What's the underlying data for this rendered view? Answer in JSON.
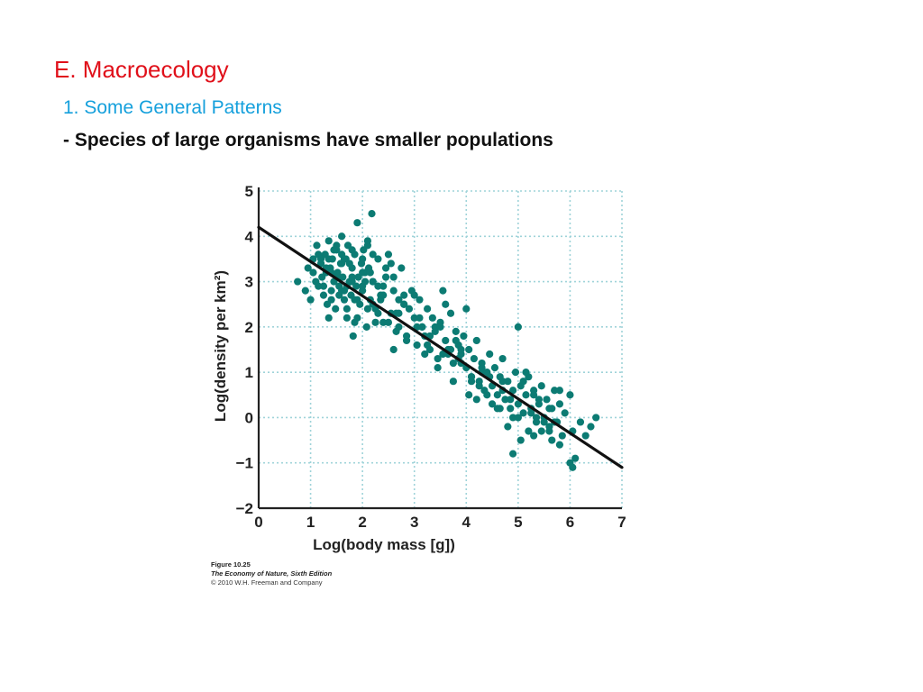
{
  "slide": {
    "title": "E. Macroecology",
    "subtitle": "1. Some General Patterns",
    "bullet": "- Species of large organisms have smaller populations"
  },
  "colors": {
    "title": "#e0101a",
    "subtitle": "#15a0dc",
    "points": "#0c7b73",
    "regression_line": "#111111",
    "grid": "#9fd3d9"
  },
  "caption": {
    "figure": "Figure 10.25",
    "book": "The Economy of Nature, Sixth Edition",
    "copyright": "© 2010 W.H. Freeman and Company"
  },
  "chart_data": {
    "type": "scatter",
    "title": "",
    "xlabel": "Log(body mass [g])",
    "ylabel": "Log(density per km²)",
    "xlim": [
      0,
      7
    ],
    "ylim": [
      -2,
      5
    ],
    "xticks": [
      "0",
      "1",
      "2",
      "3",
      "4",
      "5",
      "6",
      "7"
    ],
    "yticks": [
      "−2",
      "−1",
      "0",
      "1",
      "2",
      "3",
      "4",
      "5"
    ],
    "grid": true,
    "grid_style": "dotted",
    "regression_line": {
      "x": [
        0,
        7
      ],
      "y": [
        4.2,
        -1.1
      ]
    },
    "points": {
      "x": [
        0.75,
        0.9,
        0.95,
        1.0,
        1.05,
        1.1,
        1.12,
        1.15,
        1.2,
        1.22,
        1.25,
        1.28,
        1.3,
        1.32,
        1.35,
        1.38,
        1.4,
        1.42,
        1.45,
        1.48,
        1.5,
        1.52,
        1.55,
        1.58,
        1.6,
        1.62,
        1.65,
        1.68,
        1.7,
        1.72,
        1.75,
        1.78,
        1.8,
        1.82,
        1.85,
        1.88,
        1.9,
        1.92,
        1.95,
        1.98,
        2.0,
        2.02,
        2.05,
        2.08,
        2.1,
        2.12,
        2.15,
        2.18,
        2.2,
        2.25,
        2.3,
        2.35,
        2.4,
        2.45,
        2.5,
        2.55,
        2.6,
        2.65,
        2.7,
        2.75,
        2.8,
        2.85,
        2.9,
        2.95,
        3.0,
        3.05,
        3.1,
        3.15,
        3.2,
        3.25,
        3.3,
        3.35,
        3.4,
        3.45,
        3.5,
        3.55,
        3.6,
        3.65,
        3.7,
        3.75,
        3.8,
        3.85,
        3.9,
        3.95,
        4.0,
        4.05,
        4.1,
        4.15,
        4.2,
        4.25,
        4.3,
        4.35,
        4.4,
        4.45,
        4.5,
        4.55,
        4.6,
        4.65,
        4.7,
        4.75,
        4.8,
        4.85,
        4.9,
        4.95,
        5.0,
        5.05,
        5.1,
        5.15,
        5.2,
        5.25,
        5.3,
        5.35,
        5.4,
        5.45,
        5.5,
        5.55,
        5.6,
        5.65,
        5.7,
        5.75,
        5.8,
        5.85,
        5.9,
        6.0,
        6.05,
        6.1,
        6.2,
        6.3,
        6.4,
        6.5,
        1.3,
        1.35,
        1.45,
        1.55,
        1.6,
        1.7,
        1.8,
        1.9,
        2.0,
        2.1,
        2.2,
        2.3,
        2.4,
        2.5,
        2.6,
        2.7,
        2.8,
        3.0,
        3.2,
        3.4,
        3.6,
        3.8,
        3.9,
        4.0,
        4.1,
        4.3,
        4.5,
        4.7,
        4.9,
        5.0,
        5.2,
        5.4,
        5.6,
        5.8,
        6.0,
        1.5,
        1.65,
        1.75,
        1.85,
        2.05,
        2.25,
        2.45,
        2.65,
        2.85,
        3.05,
        3.25,
        3.45,
        3.65,
        3.85,
        4.05,
        4.25,
        4.45,
        4.65,
        4.85,
        5.05,
        5.25,
        5.45,
        5.65,
        1.05,
        1.15,
        1.25,
        1.35,
        1.4,
        1.5,
        1.6,
        1.7,
        1.8,
        1.9,
        2.0,
        2.1,
        2.2,
        2.3,
        2.6,
        2.8,
        3.3,
        3.7,
        4.1,
        4.4,
        4.8,
        5.1,
        5.3,
        5.5,
        5.7,
        1.65,
        1.85,
        2.15,
        2.35,
        2.55,
        3.15,
        3.55,
        3.75,
        4.2,
        4.6,
        4.9,
        5.15,
        5.35,
        5.6,
        6.05,
        1.2,
        1.4,
        1.6,
        1.8,
        2.0,
        2.2,
        2.4,
        2.7,
        3.1,
        3.5,
        3.9,
        4.3,
        4.7,
        5.0,
        5.3,
        5.8
      ],
      "y": [
        3.0,
        2.8,
        3.3,
        2.6,
        3.5,
        3.0,
        3.8,
        2.9,
        3.4,
        3.1,
        2.7,
        3.6,
        3.2,
        2.5,
        3.9,
        3.3,
        2.8,
        3.5,
        3.0,
        2.4,
        3.7,
        3.2,
        2.9,
        3.4,
        4.0,
        3.1,
        2.6,
        3.5,
        2.2,
        3.8,
        3.0,
        2.7,
        3.3,
        1.8,
        3.6,
        2.9,
        4.3,
        3.1,
        2.5,
        3.4,
        2.8,
        3.7,
        3.2,
        2.0,
        3.9,
        3.3,
        2.6,
        4.5,
        3.0,
        2.4,
        3.5,
        2.7,
        2.1,
        3.1,
        3.6,
        2.3,
        2.8,
        1.9,
        2.6,
        3.3,
        2.5,
        1.7,
        2.4,
        2.8,
        2.2,
        1.6,
        2.6,
        2.0,
        1.8,
        2.4,
        1.5,
        2.2,
        1.9,
        1.3,
        2.1,
        2.8,
        1.7,
        1.4,
        2.3,
        1.2,
        1.9,
        1.6,
        1.4,
        1.8,
        1.1,
        1.5,
        0.9,
        1.3,
        1.7,
        0.8,
        1.2,
        0.6,
        1.0,
        1.4,
        0.7,
        1.1,
        0.5,
        0.9,
        1.3,
        0.4,
        0.8,
        0.2,
        0.6,
        1.0,
        0.3,
        0.7,
        0.1,
        0.5,
        0.9,
        0.2,
        0.6,
        -0.1,
        0.3,
        0.7,
        0.0,
        0.4,
        -0.2,
        0.2,
        0.6,
        -0.1,
        0.3,
        -0.4,
        0.1,
        0.5,
        -0.3,
        -0.9,
        -0.1,
        -0.4,
        -0.2,
        0.0,
        3.3,
        2.2,
        3.7,
        2.7,
        3.6,
        2.4,
        3.0,
        2.2,
        3.5,
        2.4,
        3.6,
        2.3,
        2.9,
        2.1,
        3.1,
        2.0,
        2.5,
        2.7,
        1.4,
        2.0,
        2.5,
        1.7,
        1.2,
        2.4,
        0.8,
        1.1,
        0.3,
        0.8,
        0.0,
        2.0,
        -0.3,
        0.4,
        0.2,
        -0.6,
        -1.0,
        3.8,
        2.8,
        3.4,
        2.6,
        3.0,
        2.1,
        3.3,
        2.3,
        1.8,
        2.0,
        1.6,
        1.1,
        1.5,
        1.3,
        0.5,
        0.7,
        0.9,
        0.2,
        0.4,
        -0.5,
        0.1,
        -0.3,
        -0.5,
        3.2,
        3.6,
        2.9,
        3.5,
        2.6,
        3.1,
        3.4,
        2.9,
        3.7,
        2.6,
        3.2,
        3.8,
        2.5,
        2.9,
        1.5,
        2.7,
        1.8,
        1.5,
        0.9,
        0.5,
        -0.2,
        0.8,
        -0.4,
        -0.1,
        -0.1,
        3.5,
        2.1,
        3.2,
        2.6,
        3.4,
        2.0,
        1.4,
        0.8,
        0.4,
        0.2,
        -0.8,
        1.0,
        0.0,
        -0.3,
        -1.1,
        3.5,
        3.2,
        2.8,
        3.1,
        2.9,
        3.0,
        2.7,
        2.3,
        2.2,
        2.0,
        1.5,
        1.0,
        0.6,
        0.0,
        0.5,
        0.6
      ]
    }
  }
}
